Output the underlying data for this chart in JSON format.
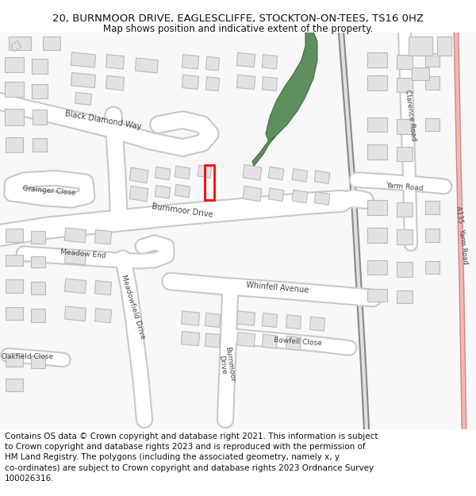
{
  "title_line1": "20, BURNMOOR DRIVE, EAGLESCLIFFE, STOCKTON-ON-TEES, TS16 0HZ",
  "title_line2": "Map shows position and indicative extent of the property.",
  "copyright_text": "Contains OS data © Crown copyright and database right 2021. This information is subject\nto Crown copyright and database rights 2023 and is reproduced with the permission of\nHM Land Registry. The polygons (including the associated geometry, namely x, y\nco-ordinates) are subject to Crown copyright and database rights 2023 Ordnance Survey\n100026316.",
  "title_fontsize": 9.5,
  "subtitle_fontsize": 8.5,
  "copyright_fontsize": 7.5,
  "bg_color": "#ffffff",
  "map_bg": "#f8f8f8",
  "road_white": "#ffffff",
  "road_grey": "#c8c8c8",
  "building_fc": "#e2e2e2",
  "building_ec": "#bbbbbb",
  "green_fc": "#5f8f5f",
  "green_ec": "#3d6e3d",
  "red_color": "#ff0000",
  "pink_color": "#f0a0a0",
  "diagonal_road_color": "#aaaaaa"
}
